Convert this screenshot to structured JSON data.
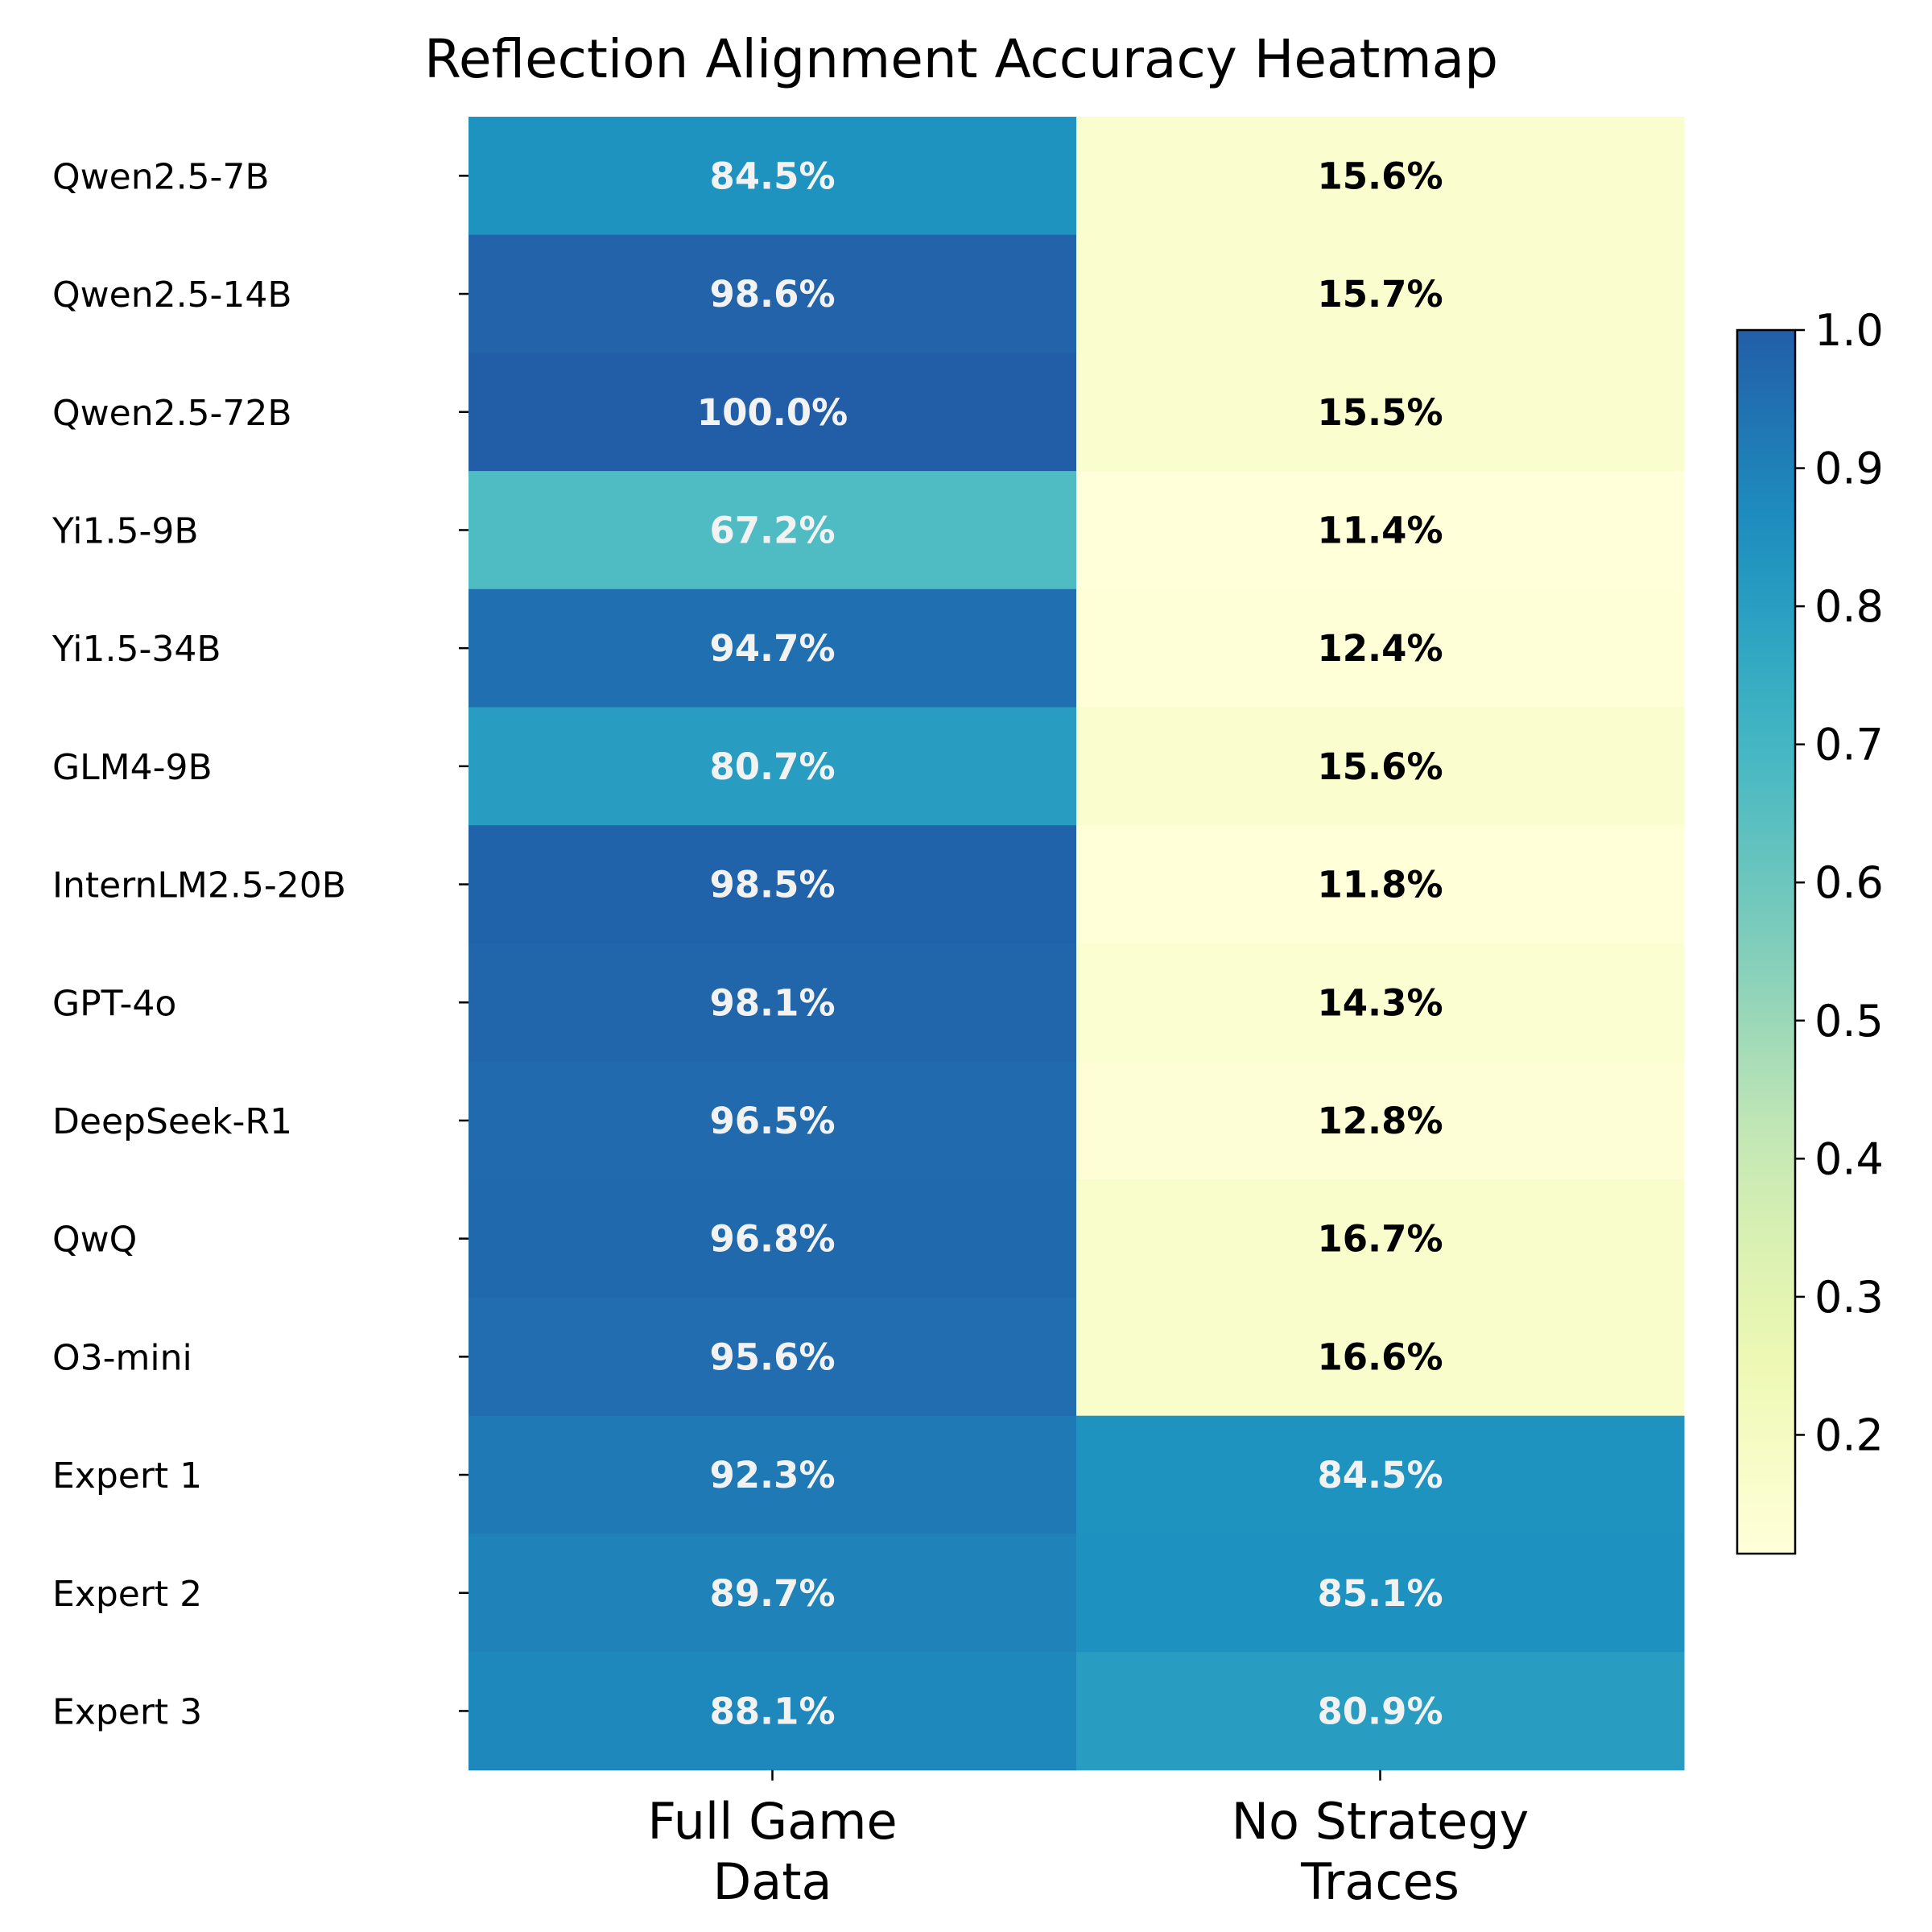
{
  "chart_data": {
    "type": "heatmap",
    "title": "Reflection Alignment Accuracy Heatmap",
    "rows": [
      "Qwen2.5-7B",
      "Qwen2.5-14B",
      "Qwen2.5-72B",
      "Yi1.5-9B",
      "Yi1.5-34B",
      "GLM4-9B",
      "InternLM2.5-20B",
      "GPT-4o",
      "DeepSeek-R1",
      "QwQ",
      "O3-mini",
      "Expert 1",
      "Expert 2",
      "Expert 3"
    ],
    "columns": [
      {
        "line1": "Full Game",
        "line2": "Data"
      },
      {
        "line1": "No Strategy",
        "line2": "Traces"
      }
    ],
    "values": [
      [
        0.845,
        0.156
      ],
      [
        0.986,
        0.157
      ],
      [
        1.0,
        0.155
      ],
      [
        0.672,
        0.114
      ],
      [
        0.947,
        0.124
      ],
      [
        0.807,
        0.156
      ],
      [
        0.985,
        0.118
      ],
      [
        0.981,
        0.143
      ],
      [
        0.965,
        0.128
      ],
      [
        0.968,
        0.167
      ],
      [
        0.956,
        0.166
      ],
      [
        0.923,
        0.845
      ],
      [
        0.897,
        0.851
      ],
      [
        0.881,
        0.809
      ]
    ],
    "labels": [
      [
        "84.5%",
        "15.6%"
      ],
      [
        "98.6%",
        "15.7%"
      ],
      [
        "100.0%",
        "15.5%"
      ],
      [
        "67.2%",
        "11.4%"
      ],
      [
        "94.7%",
        "12.4%"
      ],
      [
        "80.7%",
        "15.6%"
      ],
      [
        "98.5%",
        "11.8%"
      ],
      [
        "98.1%",
        "14.3%"
      ],
      [
        "96.5%",
        "12.8%"
      ],
      [
        "96.8%",
        "16.7%"
      ],
      [
        "95.6%",
        "16.6%"
      ],
      [
        "92.3%",
        "84.5%"
      ],
      [
        "89.7%",
        "85.1%"
      ],
      [
        "88.1%",
        "80.9%"
      ]
    ],
    "colormap": "YlGnBu",
    "vmin": 0.114,
    "vmax": 1.0,
    "colorbar_ticks": [
      "0.2",
      "0.3",
      "0.4",
      "0.5",
      "0.6",
      "0.7",
      "0.8",
      "0.9",
      "1.0"
    ]
  }
}
